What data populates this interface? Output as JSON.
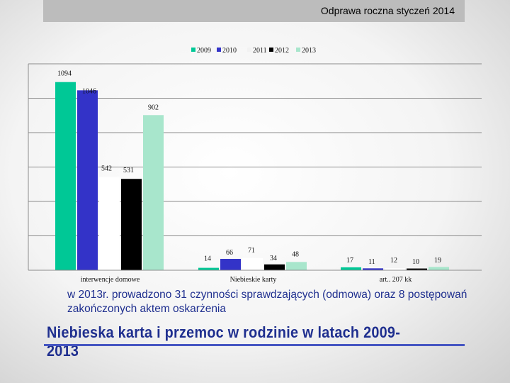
{
  "header": {
    "title": "Odprawa roczna styczeń 2014"
  },
  "note": "w 2013r. prowadzono 31 czynności sprawdzających (odmowa) oraz 8 postępowań zakończonych aktem oskarżenia",
  "bottom_title": "Niebieska karta i przemoc w rodzinie w latach 2009-2013",
  "chart_data": {
    "type": "bar",
    "title": "",
    "xlabel": "",
    "ylabel": "",
    "ylim": [
      0,
      1200
    ],
    "grid": true,
    "legend": "top",
    "categories": [
      "interwencje domowe",
      "Niebieskie karty",
      "art.. 207 kk"
    ],
    "series": [
      {
        "name": "2009",
        "color": "#00c896",
        "values": [
          1094,
          14,
          17
        ]
      },
      {
        "name": "2010",
        "color": "#3333c8",
        "values": [
          1046,
          66,
          11
        ]
      },
      {
        "name": "2011",
        "color": "#ffffff",
        "values": [
          542,
          71,
          12
        ]
      },
      {
        "name": "2012",
        "color": "#000000",
        "values": [
          531,
          34,
          10
        ]
      },
      {
        "name": "2013",
        "color": "#a8e6cc",
        "values": [
          902,
          48,
          19
        ]
      }
    ]
  }
}
